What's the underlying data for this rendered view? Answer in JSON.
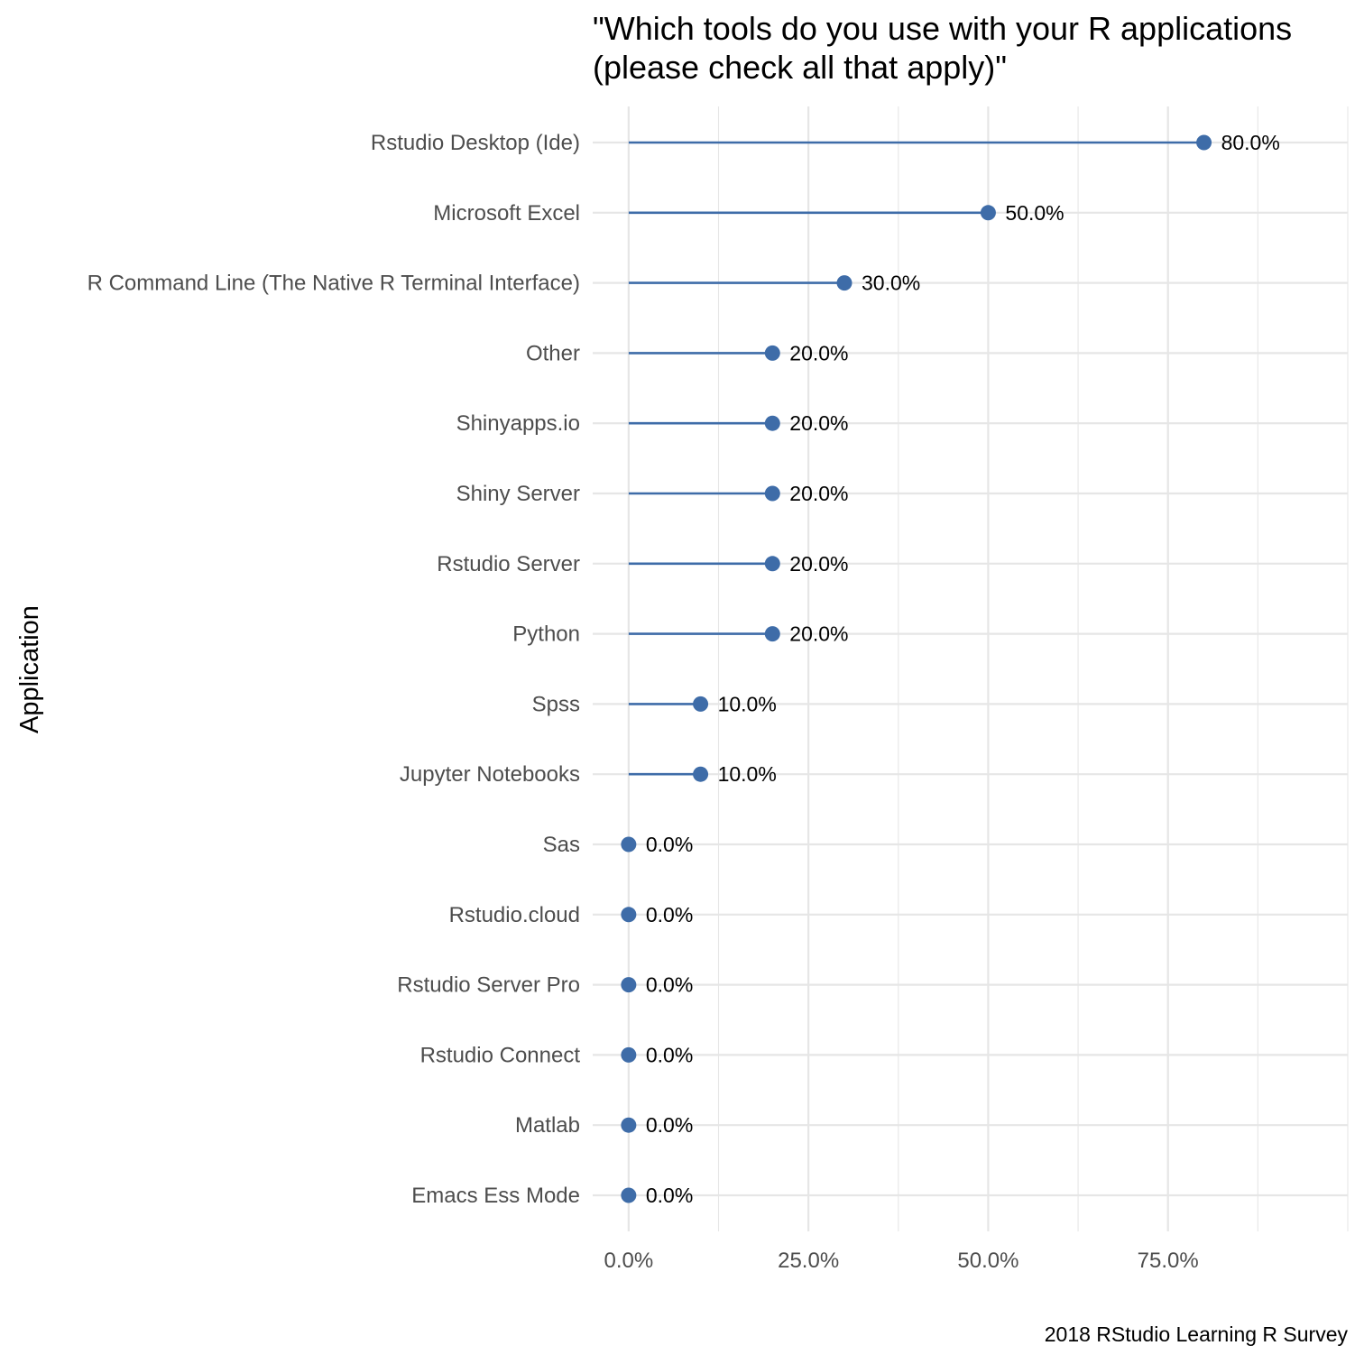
{
  "chart_data": {
    "type": "lollipop",
    "title_lines": [
      "\"Which tools do you use with your R applications",
      "(please check all that apply)\""
    ],
    "ylabel": "Application",
    "caption": "2018 RStudio Learning R Survey",
    "categories": [
      "Rstudio Desktop (Ide)",
      "Microsoft Excel",
      "R Command Line (The Native R Terminal Interface)",
      "Other",
      "Shinyapps.io",
      "Shiny Server",
      "Rstudio Server",
      "Python",
      "Spss",
      "Jupyter Notebooks",
      "Sas",
      "Rstudio.cloud",
      "Rstudio Server Pro",
      "Rstudio Connect",
      "Matlab",
      "Emacs Ess Mode"
    ],
    "values": [
      0.8,
      0.5,
      0.3,
      0.2,
      0.2,
      0.2,
      0.2,
      0.2,
      0.1,
      0.1,
      0,
      0,
      0,
      0,
      0,
      0
    ],
    "value_labels": [
      "80.0%",
      "50.0%",
      "30.0%",
      "20.0%",
      "20.0%",
      "20.0%",
      "20.0%",
      "20.0%",
      "10.0%",
      "10.0%",
      "0.0%",
      "0.0%",
      "0.0%",
      "0.0%",
      "0.0%",
      "0.0%"
    ],
    "xticks": [
      0,
      0.25,
      0.5,
      0.75
    ],
    "xtick_labels": [
      "0.0%",
      "25.0%",
      "50.0%",
      "75.0%"
    ],
    "xlim": [
      -0.05,
      1.0
    ],
    "grid": true,
    "color": "#3e6ca8",
    "grid_color": "#e6e6e6"
  }
}
